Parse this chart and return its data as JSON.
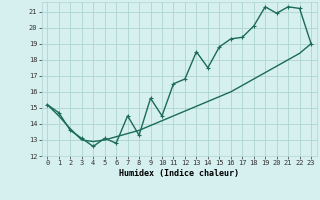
{
  "xlabel": "Humidex (Indice chaleur)",
  "bg_color": "#d6efef",
  "grid_color": "#aed4d4",
  "line_color": "#1a6b5a",
  "xlim": [
    -0.5,
    23.5
  ],
  "ylim": [
    12,
    21.6
  ],
  "yticks": [
    12,
    13,
    14,
    15,
    16,
    17,
    18,
    19,
    20,
    21
  ],
  "xticks": [
    0,
    1,
    2,
    3,
    4,
    5,
    6,
    7,
    8,
    9,
    10,
    11,
    12,
    13,
    14,
    15,
    16,
    17,
    18,
    19,
    20,
    21,
    22,
    23
  ],
  "line1_x": [
    0,
    1,
    2,
    3,
    4,
    5,
    6,
    7,
    8,
    9,
    10,
    11,
    12,
    13,
    14,
    15,
    16,
    17,
    18,
    19,
    20,
    21,
    22,
    23
  ],
  "line1_y": [
    15.2,
    14.7,
    13.6,
    13.1,
    12.6,
    13.1,
    12.8,
    14.5,
    13.3,
    15.6,
    14.5,
    16.5,
    16.8,
    18.5,
    17.5,
    18.8,
    19.3,
    19.4,
    20.1,
    21.3,
    20.9,
    21.3,
    21.2,
    19.0
  ],
  "line2_x": [
    0,
    1,
    2,
    3,
    4,
    5,
    6,
    7,
    8,
    9,
    10,
    11,
    12,
    13,
    14,
    15,
    16,
    17,
    18,
    19,
    20,
    21,
    22,
    23
  ],
  "line2_y": [
    15.2,
    14.5,
    13.7,
    13.0,
    12.9,
    13.0,
    13.2,
    13.4,
    13.6,
    13.9,
    14.2,
    14.5,
    14.8,
    15.1,
    15.4,
    15.7,
    16.0,
    16.4,
    16.8,
    17.2,
    17.6,
    18.0,
    18.4,
    19.0
  ],
  "xlabel_fontsize": 6,
  "tick_fontsize": 5,
  "linewidth": 1.0,
  "markersize": 3
}
